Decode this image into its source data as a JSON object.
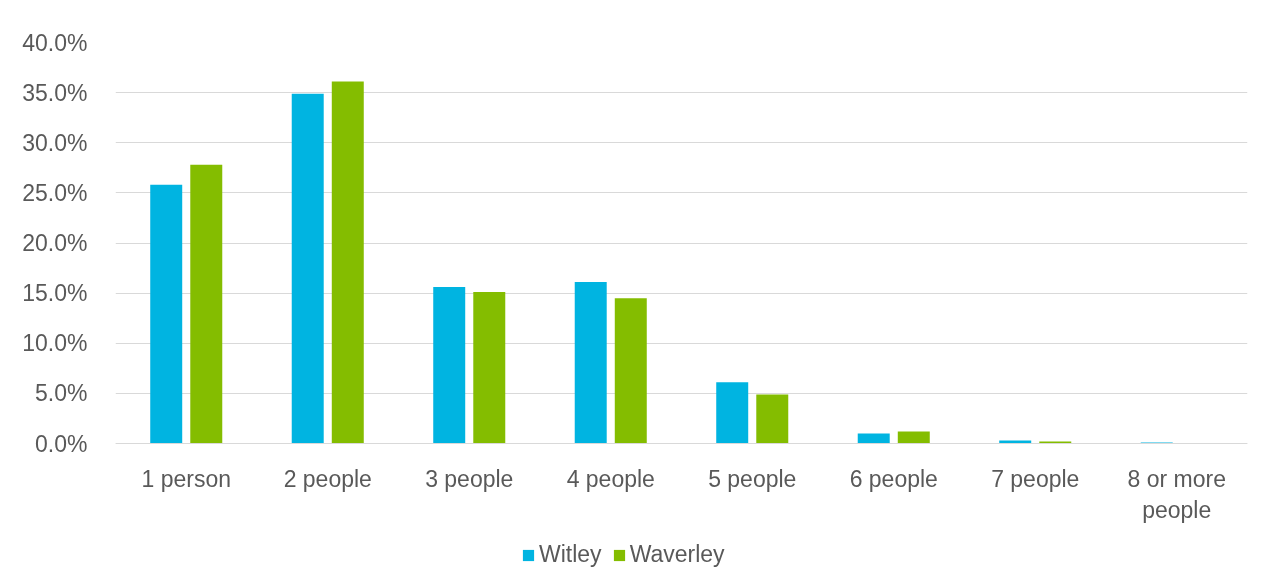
{
  "chart_data": {
    "type": "bar",
    "categories": [
      "1 person",
      "2 people",
      "3 people",
      "4 people",
      "5 people",
      "6 people",
      "7 people",
      "8 or more people"
    ],
    "series": [
      {
        "name": "Witley",
        "color": "#00b4e1",
        "values": [
          25.8,
          34.9,
          15.6,
          16.1,
          6.1,
          1.0,
          0.3,
          0.1
        ]
      },
      {
        "name": "Waverley",
        "color": "#84bd00",
        "values": [
          27.8,
          36.1,
          15.1,
          14.5,
          4.9,
          1.2,
          0.2,
          0.0
        ]
      }
    ],
    "ylim": [
      0,
      40
    ],
    "yticks": [
      {
        "value": 0,
        "label": "0.0%"
      },
      {
        "value": 5,
        "label": "5.0%"
      },
      {
        "value": 10,
        "label": "10.0%"
      },
      {
        "value": 15,
        "label": "15.0%"
      },
      {
        "value": 20,
        "label": "20.0%"
      },
      {
        "value": 25,
        "label": "25.0%"
      },
      {
        "value": 30,
        "label": "30.0%"
      },
      {
        "value": 35,
        "label": "35.0%"
      },
      {
        "value": 40,
        "label": "40.0%"
      }
    ],
    "grid": "y",
    "legend": "bottom"
  }
}
